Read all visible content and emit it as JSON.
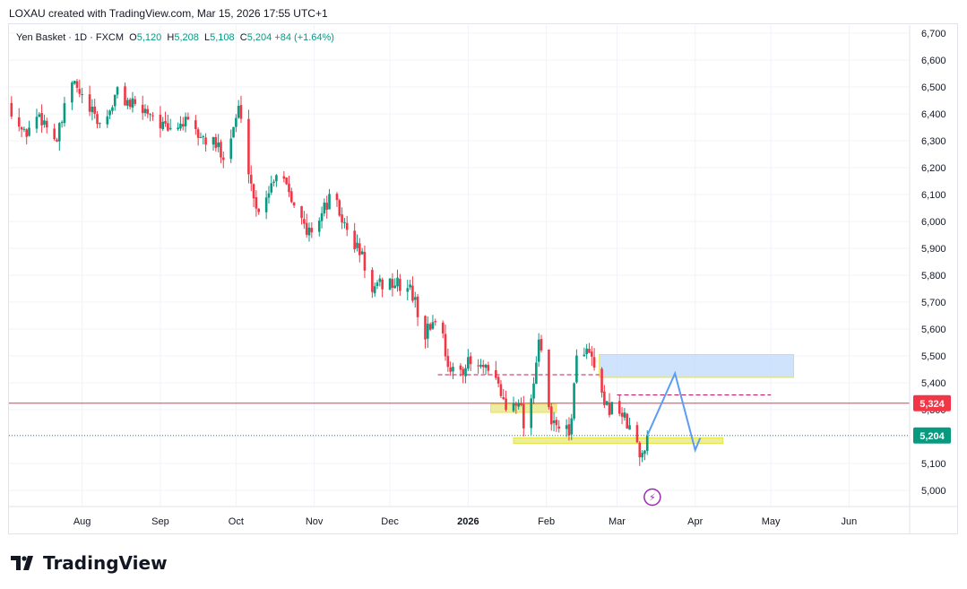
{
  "header": {
    "creator_line": "LOXAU created with TradingView.com, Mar 15, 2026 17:55 UTC+1"
  },
  "legend": {
    "symbol": "Yen Basket · 1D · FXCM",
    "open_key": "O",
    "open": "5,120",
    "high_key": "H",
    "high": "5,208",
    "low_key": "L",
    "low": "5,108",
    "close_key": "C",
    "close": "5,204",
    "change": "+84 (+1.64%)"
  },
  "brand": {
    "name": "TradingView"
  },
  "colors": {
    "up": "#089981",
    "down": "#f23645",
    "zone_yellow": "#e8e88a",
    "zone_blue": "#bbd9fb",
    "projection": "#5b9cf6",
    "grid": "#f0f3fa"
  },
  "chart_data": {
    "type": "candlestick",
    "title": "Yen Basket · 1D · FXCM",
    "ylim": [
      4950,
      6750
    ],
    "y_ticks": [
      "6,700",
      "6,600",
      "6,500",
      "6,400",
      "6,300",
      "6,200",
      "6,100",
      "6,000",
      "5,900",
      "5,800",
      "5,700",
      "5,600",
      "5,500",
      "5,400",
      "5,300",
      "5,200",
      "5,100",
      "5,000"
    ],
    "y_tick_values": [
      6700,
      6600,
      6500,
      6400,
      6300,
      6200,
      6100,
      6000,
      5900,
      5800,
      5700,
      5600,
      5500,
      5400,
      5300,
      5200,
      5100,
      5000
    ],
    "x_ticks": [
      "Aug",
      "Sep",
      "Oct",
      "Nov",
      "Dec",
      "2026",
      "Feb",
      "Mar",
      "Apr",
      "May",
      "Jun"
    ],
    "x_tick_dates": [
      "2025-08-01",
      "2025-09-01",
      "2025-10-01",
      "2025-11-01",
      "2025-12-01",
      "2026-01-01",
      "2026-02-01",
      "2026-03-01",
      "2026-04-01",
      "2026-05-01",
      "2026-06-01"
    ],
    "x_range_dates": [
      "2025-07-03",
      "2026-06-25"
    ],
    "price_markers": [
      {
        "label": "5,324",
        "value": 5324,
        "color": "#f23645"
      },
      {
        "label": "5,204",
        "value": 5204,
        "color": "#089981"
      }
    ],
    "zones": [
      {
        "kind": "demand",
        "from": "2026-01-19",
        "to": "2026-04-12",
        "low": 5175,
        "high": 5195,
        "color": "#e8e88a"
      },
      {
        "kind": "demand",
        "from": "2026-01-10",
        "to": "2026-02-05",
        "low": 5290,
        "high": 5320,
        "color": "#e8e88a"
      },
      {
        "kind": "target",
        "from": "2026-02-22",
        "to": "2026-05-10",
        "low": 5420,
        "high": 5505,
        "color": "#bbd9fb"
      }
    ],
    "dashed_levels": [
      {
        "from": "2025-12-20",
        "to": "2026-02-22",
        "value": 5430,
        "color": "#c2185b"
      },
      {
        "from": "2026-03-01",
        "to": "2026-05-01",
        "value": 5355,
        "color": "#c2185b"
      }
    ],
    "horizontal_lines": [
      {
        "value": 5324,
        "color": "#f23645",
        "style": "solid"
      },
      {
        "value": 5204,
        "color": "#089981",
        "style": "dotted"
      }
    ],
    "projection": [
      {
        "date": "2026-03-13",
        "value": 5204
      },
      {
        "date": "2026-03-24",
        "value": 5435
      },
      {
        "date": "2026-04-01",
        "value": 5150
      },
      {
        "date": "2026-04-03",
        "value": 5195
      }
    ],
    "event_marker": {
      "date": "2026-03-15",
      "value": 4975,
      "symbol": "⚡"
    },
    "anchors": [
      [
        "2025-07-04",
        6420
      ],
      [
        "2025-07-09",
        6320
      ],
      [
        "2025-07-15",
        6400
      ],
      [
        "2025-07-22",
        6300
      ],
      [
        "2025-07-28",
        6520
      ],
      [
        "2025-08-04",
        6410
      ],
      [
        "2025-08-09",
        6350
      ],
      [
        "2025-08-15",
        6480
      ],
      [
        "2025-08-22",
        6420
      ],
      [
        "2025-08-28",
        6410
      ],
      [
        "2025-09-04",
        6330
      ],
      [
        "2025-09-10",
        6370
      ],
      [
        "2025-09-16",
        6320
      ],
      [
        "2025-09-23",
        6280
      ],
      [
        "2025-09-27",
        6250
      ],
      [
        "2025-10-02",
        6420
      ],
      [
        "2025-10-06",
        6200
      ],
      [
        "2025-10-09",
        6040
      ],
      [
        "2025-10-14",
        6120
      ],
      [
        "2025-10-18",
        6210
      ],
      [
        "2025-10-24",
        6080
      ],
      [
        "2025-10-29",
        5950
      ],
      [
        "2025-11-04",
        6030
      ],
      [
        "2025-11-08",
        6100
      ],
      [
        "2025-11-14",
        5960
      ],
      [
        "2025-11-20",
        5870
      ],
      [
        "2025-11-24",
        5730
      ],
      [
        "2025-11-29",
        5780
      ],
      [
        "2025-12-05",
        5760
      ],
      [
        "2025-12-09",
        5750
      ],
      [
        "2025-12-15",
        5580
      ],
      [
        "2025-12-20",
        5660
      ],
      [
        "2025-12-25",
        5430
      ],
      [
        "2026-01-01",
        5470
      ],
      [
        "2026-01-07",
        5450
      ],
      [
        "2026-01-13",
        5390
      ],
      [
        "2026-01-16",
        5300
      ],
      [
        "2026-01-21",
        5350
      ],
      [
        "2026-01-24",
        5200
      ],
      [
        "2026-01-29",
        5560
      ],
      [
        "2026-02-03",
        5240
      ],
      [
        "2026-02-06",
        5250
      ],
      [
        "2026-02-10",
        5200
      ],
      [
        "2026-02-14",
        5570
      ],
      [
        "2026-02-19",
        5480
      ],
      [
        "2026-02-24",
        5300
      ],
      [
        "2026-03-01",
        5320
      ],
      [
        "2026-03-05",
        5240
      ],
      [
        "2026-03-08",
        5220
      ],
      [
        "2026-03-10",
        5110
      ],
      [
        "2026-03-13",
        5204
      ]
    ]
  }
}
